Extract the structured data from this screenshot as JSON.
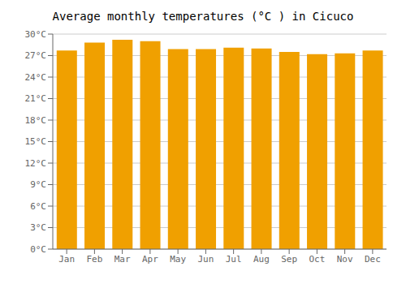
{
  "chart_data": {
    "type": "bar",
    "title": "Average monthly temperatures (°C ) in Cicuco",
    "categories": [
      "Jan",
      "Feb",
      "Mar",
      "Apr",
      "May",
      "Jun",
      "Jul",
      "Aug",
      "Sep",
      "Oct",
      "Nov",
      "Dec"
    ],
    "values": [
      27.7,
      28.8,
      29.2,
      29.0,
      27.9,
      27.9,
      28.1,
      28.0,
      27.5,
      27.2,
      27.3,
      27.7
    ],
    "color": "#F0A000",
    "ylim": [
      0,
      30
    ],
    "yticks": [
      {
        "value": 0,
        "label": "0°C"
      },
      {
        "value": 3,
        "label": "3°C"
      },
      {
        "value": 6,
        "label": "6°C"
      },
      {
        "value": 9,
        "label": "9°C"
      },
      {
        "value": 12,
        "label": "12°C"
      },
      {
        "value": 15,
        "label": "15°C"
      },
      {
        "value": 18,
        "label": "18°C"
      },
      {
        "value": 21,
        "label": "21°C"
      },
      {
        "value": 24,
        "label": "24°C"
      },
      {
        "value": 27,
        "label": "27°C"
      },
      {
        "value": 30,
        "label": "30°C"
      }
    ],
    "grid": true
  }
}
